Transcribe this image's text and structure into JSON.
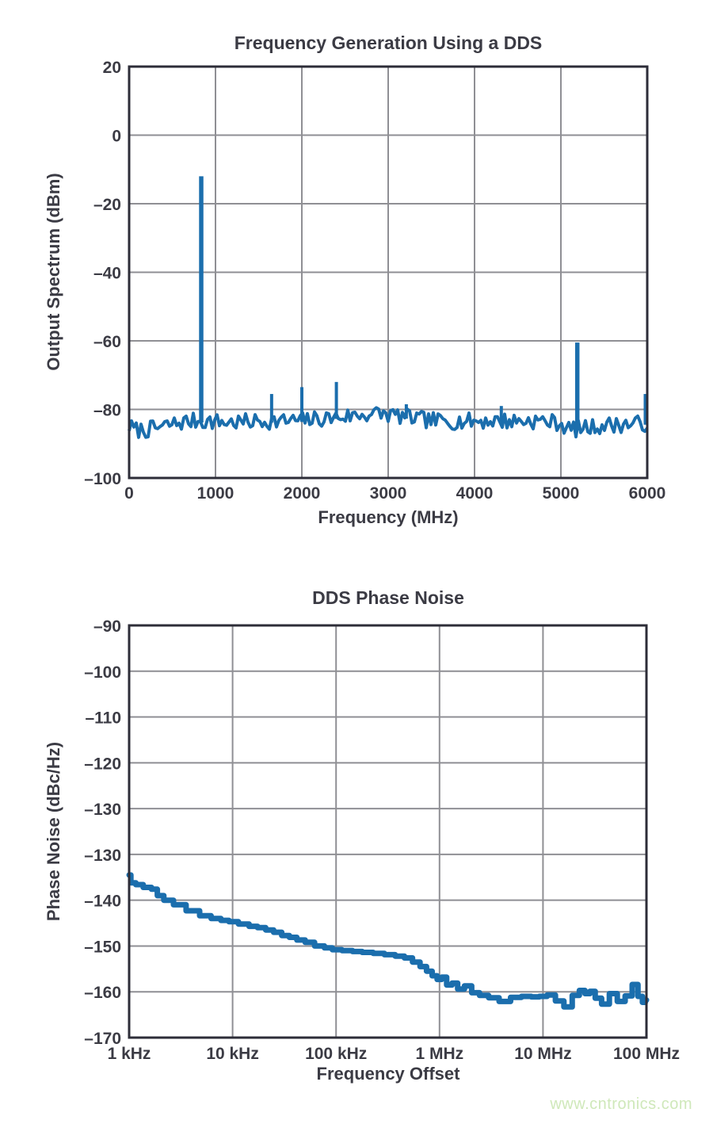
{
  "page": {
    "watermark": "www.cntronics.com",
    "watermark_color": "#cfe8ba",
    "background": "#ffffff",
    "text_color": "#3b3b44",
    "grid_color": "#8f8f94",
    "border_color": "#2d2d38",
    "trace_color": "#1b6ead"
  },
  "chart_data": [
    {
      "type": "line",
      "id": "dds-output-spectrum",
      "title": "Frequency Generation Using a DDS",
      "xlabel": "Frequency (MHz)",
      "ylabel": "Output Spectrum (dBm)",
      "xlim": [
        0,
        6000
      ],
      "ylim": [
        -100,
        20
      ],
      "grid": true,
      "x_tick_values": [
        0,
        1000,
        2000,
        3000,
        4000,
        5000,
        6000
      ],
      "x_tick_labels": [
        "0",
        "1000",
        "2000",
        "3000",
        "4000",
        "5000",
        "6000"
      ],
      "y_tick_values": [
        20,
        0,
        -20,
        -40,
        -60,
        -80,
        -100
      ],
      "y_tick_labels": [
        "20",
        "0",
        "–20",
        "–40",
        "–60",
        "–80",
        "–100"
      ],
      "noise_floor": {
        "ripple_db": 2.4,
        "anchors": [
          [
            0,
            -85.0
          ],
          [
            80,
            -86.0
          ],
          [
            200,
            -86.0
          ],
          [
            350,
            -85.3
          ],
          [
            500,
            -84.3
          ],
          [
            650,
            -83.6
          ],
          [
            800,
            -83.3
          ],
          [
            1000,
            -83.6
          ],
          [
            1200,
            -83.8
          ],
          [
            1400,
            -83.6
          ],
          [
            1600,
            -83.4
          ],
          [
            1800,
            -83.4
          ],
          [
            2000,
            -83.2
          ],
          [
            2200,
            -82.8
          ],
          [
            2400,
            -82.3
          ],
          [
            2600,
            -81.8
          ],
          [
            2750,
            -81.4
          ],
          [
            2900,
            -81.2
          ],
          [
            3050,
            -81.6
          ],
          [
            3200,
            -82.2
          ],
          [
            3400,
            -83.0
          ],
          [
            3600,
            -83.4
          ],
          [
            3800,
            -83.5
          ],
          [
            4000,
            -83.4
          ],
          [
            4200,
            -83.3
          ],
          [
            4400,
            -83.4
          ],
          [
            4600,
            -83.3
          ],
          [
            4800,
            -83.4
          ],
          [
            5000,
            -84.0
          ],
          [
            5080,
            -85.8
          ],
          [
            5200,
            -85.6
          ],
          [
            5350,
            -85.2
          ],
          [
            5500,
            -84.6
          ],
          [
            5700,
            -84.4
          ],
          [
            5900,
            -84.2
          ],
          [
            6000,
            -84.0
          ]
        ]
      },
      "spurs_mhz_dbm": [
        [
          835,
          -12.0
        ],
        [
          1650,
          -75.5
        ],
        [
          2000,
          -73.5
        ],
        [
          2400,
          -72.0
        ],
        [
          3210,
          -78.5
        ],
        [
          4310,
          -79.0
        ],
        [
          5190,
          -60.5
        ],
        [
          6000,
          -75.5
        ]
      ]
    },
    {
      "type": "line",
      "id": "dds-phase-noise",
      "title": "DDS Phase Noise",
      "xlabel": "Frequency Offset",
      "ylabel": "Phase Noise (dBc/Hz)",
      "x_scale": "log",
      "xlim_hz": [
        1000,
        100000000
      ],
      "grid": true,
      "x_tick_values_hz": [
        1000,
        10000,
        100000,
        1000000,
        10000000,
        100000000
      ],
      "x_tick_labels": [
        "1 kHz",
        "10 kHz",
        "100 kHz",
        "1 MHz",
        "10 MHz",
        "100 MHz"
      ],
      "y_tick_values": [
        -90,
        -100,
        -110,
        -120,
        -130,
        -130,
        -140,
        -150,
        -160,
        -170
      ],
      "y_tick_labels": [
        "–90",
        "–100",
        "–110",
        "–120",
        "–130",
        "–130",
        "–140",
        "–150",
        "–160",
        "–170"
      ],
      "note": "y-axis shows the tick label -130 twice, exactly as printed in the source figure",
      "points_hz_dbc": [
        [
          1000,
          -134.5
        ],
        [
          1080,
          -136.2
        ],
        [
          1250,
          -136.6
        ],
        [
          1500,
          -137.2
        ],
        [
          1800,
          -137.6
        ],
        [
          1950,
          -139.0
        ],
        [
          2400,
          -140.0
        ],
        [
          3000,
          -141.0
        ],
        [
          4200,
          -142.3
        ],
        [
          5500,
          -143.4
        ],
        [
          7000,
          -144.0
        ],
        [
          8500,
          -144.4
        ],
        [
          10000,
          -144.7
        ],
        [
          13000,
          -145.2
        ],
        [
          16000,
          -145.7
        ],
        [
          19000,
          -146.0
        ],
        [
          23000,
          -146.5
        ],
        [
          27000,
          -147.0
        ],
        [
          33000,
          -147.7
        ],
        [
          38000,
          -148.1
        ],
        [
          46000,
          -148.7
        ],
        [
          55000,
          -149.2
        ],
        [
          70000,
          -150.0
        ],
        [
          85000,
          -150.4
        ],
        [
          100000,
          -150.8
        ],
        [
          130000,
          -151.0
        ],
        [
          160000,
          -151.2
        ],
        [
          200000,
          -151.4
        ],
        [
          260000,
          -151.6
        ],
        [
          330000,
          -151.9
        ],
        [
          420000,
          -152.2
        ],
        [
          500000,
          -152.6
        ],
        [
          600000,
          -153.5
        ],
        [
          700000,
          -154.5
        ],
        [
          800000,
          -155.5
        ],
        [
          900000,
          -156.5
        ],
        [
          1000000,
          -157.3
        ],
        [
          1100000,
          -156.8
        ],
        [
          1250000,
          -158.5
        ],
        [
          1400000,
          -158.1
        ],
        [
          1600000,
          -159.4
        ],
        [
          1900000,
          -158.7
        ],
        [
          2200000,
          -160.2
        ],
        [
          2700000,
          -160.8
        ],
        [
          3300000,
          -161.3
        ],
        [
          4300000,
          -162.1
        ],
        [
          5500000,
          -161.2
        ],
        [
          7000000,
          -161.0
        ],
        [
          8500000,
          -161.1
        ],
        [
          10000000,
          -161.0
        ],
        [
          12000000,
          -160.7
        ],
        [
          14500000,
          -162.0
        ],
        [
          17500000,
          -163.3
        ],
        [
          21000000,
          -160.8
        ],
        [
          24000000,
          -159.7
        ],
        [
          27000000,
          -160.4
        ],
        [
          30000000,
          -159.9
        ],
        [
          34000000,
          -161.4
        ],
        [
          40000000,
          -162.7
        ],
        [
          48000000,
          -160.4
        ],
        [
          57000000,
          -162.1
        ],
        [
          68000000,
          -160.9
        ],
        [
          78000000,
          -158.4
        ],
        [
          88000000,
          -161.0
        ],
        [
          95000000,
          -162.3
        ],
        [
          100000000,
          -161.8
        ]
      ]
    }
  ]
}
